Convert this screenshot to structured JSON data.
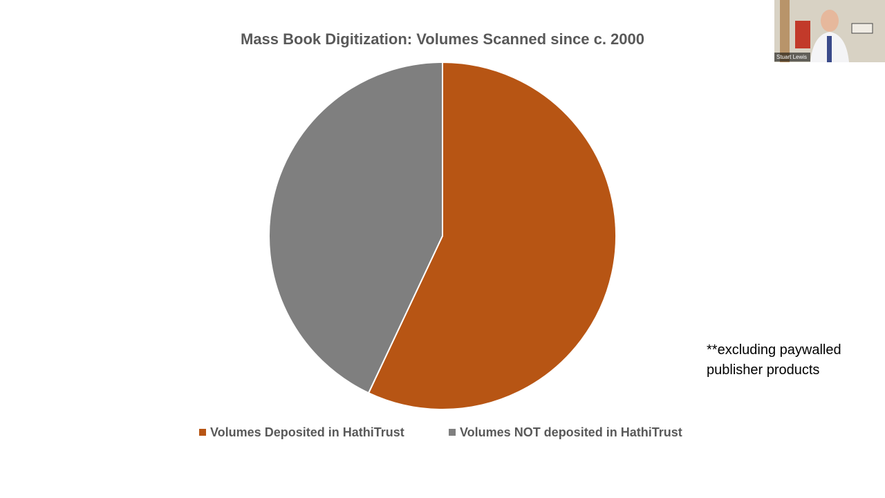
{
  "chart_data": {
    "type": "pie",
    "title": "Mass Book Digitization:  Volumes Scanned since c. 2000",
    "categories": [
      "Volumes Deposited in HathiTrust",
      "Volumes NOT deposited in HathiTrust"
    ],
    "values": [
      57,
      43
    ],
    "colors": [
      "#b75514",
      "#7f7f7f"
    ],
    "annotation": "**excluding paywalled publisher products"
  },
  "video_overlay": {
    "participant_name": "Stuart Lewis"
  }
}
